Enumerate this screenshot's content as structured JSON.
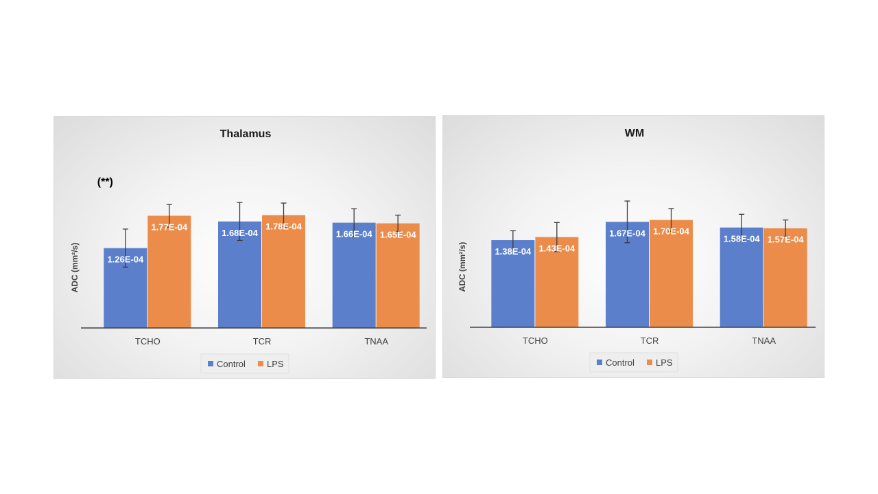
{
  "chart_data": [
    {
      "type": "bar",
      "title": "Thalamus",
      "xlabel": "",
      "ylabel": "ADC (mm²/s)",
      "ylim": [
        0,
        0.00025
      ],
      "categories": [
        "TCHO",
        "TCR",
        "TNAA"
      ],
      "series": [
        {
          "name": "Control",
          "color": "#5b7fcb",
          "values": [
            0.000126,
            0.000168,
            0.000166
          ],
          "labels": [
            "1.26E-04",
            "1.68E-04",
            "1.66E-04"
          ],
          "errors": [
            3e-05,
            3e-05,
            2.2e-05
          ]
        },
        {
          "name": "LPS",
          "color": "#ec8c4a",
          "values": [
            0.000177,
            0.000178,
            0.000165
          ],
          "labels": [
            "1.77E-04",
            "1.78E-04",
            "1.65E-04"
          ],
          "errors": [
            1.8e-05,
            1.9e-05,
            1.3e-05
          ]
        }
      ],
      "annotations": [
        {
          "text": "(**)",
          "category": "TCHO"
        }
      ],
      "legend": "bottom",
      "grid": false
    },
    {
      "type": "bar",
      "title": "WM",
      "xlabel": "",
      "ylabel": "ADC (mm²/s)",
      "ylim": [
        0,
        0.00025
      ],
      "categories": [
        "TCHO",
        "TCR",
        "TNAA"
      ],
      "series": [
        {
          "name": "Control",
          "color": "#5b7fcb",
          "values": [
            0.000138,
            0.000167,
            0.000158
          ],
          "labels": [
            "1.38E-04",
            "1.67E-04",
            "1.58E-04"
          ],
          "errors": [
            1.5e-05,
            3.3e-05,
            2.1e-05
          ]
        },
        {
          "name": "LPS",
          "color": "#ec8c4a",
          "values": [
            0.000143,
            0.00017,
            0.000157
          ],
          "labels": [
            "1.43E-04",
            "1.70E-04",
            "1.57E-04"
          ],
          "errors": [
            2.3e-05,
            1.8e-05,
            1.3e-05
          ]
        }
      ],
      "annotations": [],
      "legend": "bottom",
      "grid": false
    }
  ]
}
